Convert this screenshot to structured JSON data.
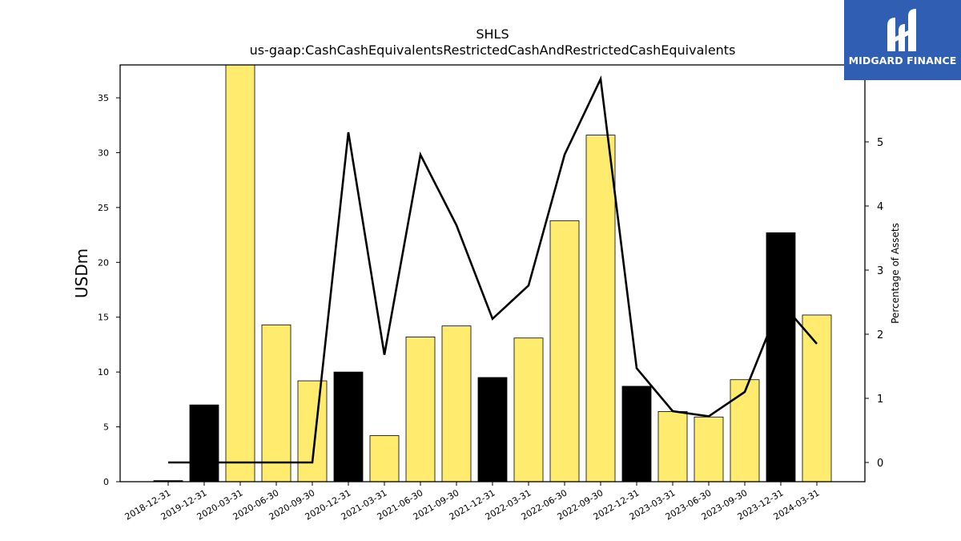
{
  "brand": {
    "name": "MIDGARD FINANCE",
    "color": "#2f5eb3"
  },
  "chart_data": {
    "type": "bar",
    "title": "SHLS",
    "subtitle": "us-gaap:CashCashEquivalentsRestrictedCashAndRestrictedCashEquivalents",
    "ylabel": "USDm",
    "y2label": "Percentage of Assets",
    "ylim": [
      0,
      38
    ],
    "y2lim": [
      -0.3,
      6.2
    ],
    "yticks": [
      0,
      5,
      10,
      15,
      20,
      25,
      30,
      35
    ],
    "y2ticks": [
      0,
      1,
      2,
      3,
      4,
      5
    ],
    "categories": [
      "2018-12-31",
      "2019-12-31",
      "2020-03-31",
      "2020-06-30",
      "2020-09-30",
      "2020-12-31",
      "2021-03-31",
      "2021-06-30",
      "2021-09-30",
      "2021-12-31",
      "2022-03-31",
      "2022-06-30",
      "2022-09-30",
      "2022-12-31",
      "2023-03-31",
      "2023-06-30",
      "2023-09-30",
      "2023-12-31",
      "2024-03-31"
    ],
    "series": [
      {
        "type": "bar",
        "values": [
          0.1,
          7.0,
          38.0,
          14.3,
          9.2,
          10.0,
          4.2,
          13.2,
          14.2,
          9.5,
          13.1,
          23.8,
          31.6,
          8.7,
          6.4,
          5.9,
          9.3,
          22.7,
          15.2
        ],
        "colors": [
          "#000000",
          "#000000",
          "#ffec6e",
          "#ffec6e",
          "#ffec6e",
          "#000000",
          "#ffec6e",
          "#ffec6e",
          "#ffec6e",
          "#000000",
          "#ffec6e",
          "#ffec6e",
          "#ffec6e",
          "#000000",
          "#ffec6e",
          "#ffec6e",
          "#ffec6e",
          "#000000",
          "#ffec6e"
        ]
      },
      {
        "type": "line",
        "axis": "right",
        "color": "#000000",
        "values": [
          0.0,
          0.0,
          0.0,
          0.0,
          0.0,
          5.15,
          1.68,
          4.8,
          3.7,
          2.24,
          2.76,
          4.8,
          5.98,
          1.47,
          0.8,
          0.72,
          1.1,
          2.5,
          1.85
        ]
      }
    ],
    "grid": false,
    "legend": "none"
  }
}
